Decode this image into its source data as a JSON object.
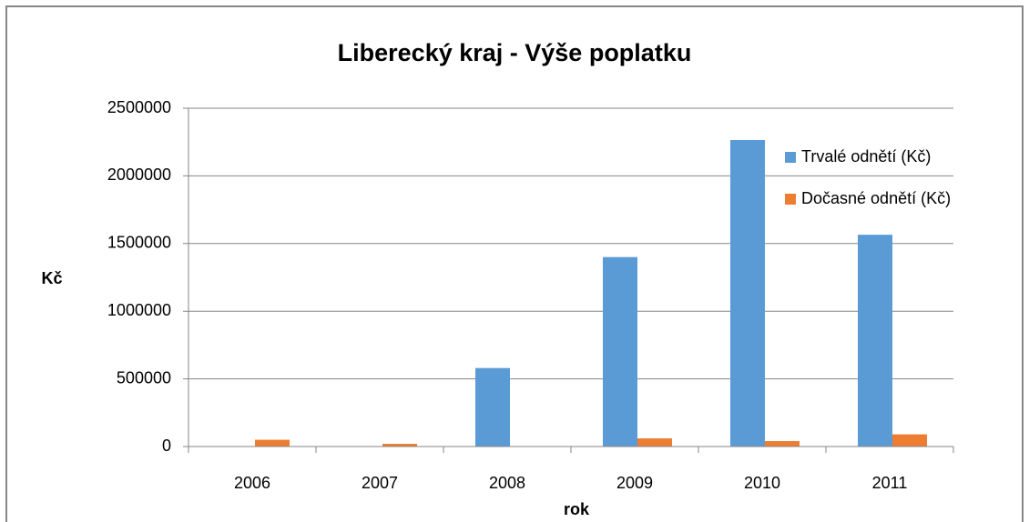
{
  "chart_data": {
    "type": "bar",
    "title": "Liberecký kraj - Výše poplatku",
    "x_label": "rok",
    "y_label": "Kč",
    "categories": [
      "2006",
      "2007",
      "2008",
      "2009",
      "2010",
      "2011"
    ],
    "series": [
      {
        "name": "Trvalé odnětí (Kč)",
        "color": "#5b9bd5",
        "values": [
          0,
          0,
          580000,
          1400000,
          2265000,
          1565000
        ]
      },
      {
        "name": "Dočasné odnětí (Kč)",
        "color": "#ed7d31",
        "values": [
          50000,
          20000,
          0,
          60000,
          40000,
          90000
        ]
      }
    ],
    "ylim": [
      0,
      2500000
    ],
    "yticks": [
      0,
      500000,
      1000000,
      1500000,
      2000000,
      2500000
    ],
    "grid": true,
    "legend": "right"
  }
}
